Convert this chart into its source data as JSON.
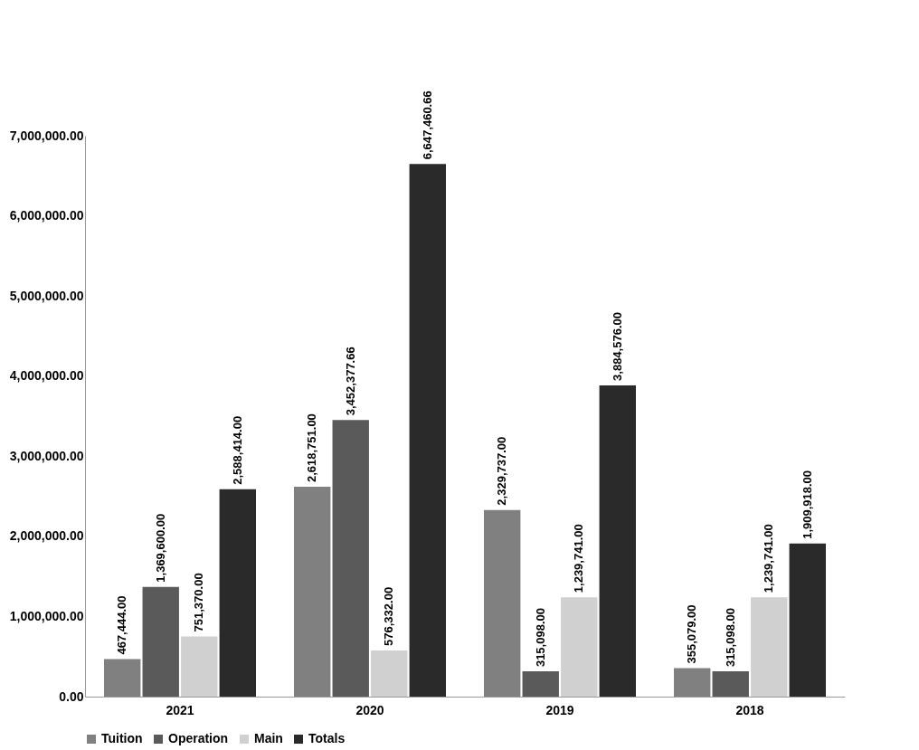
{
  "chart_data": {
    "type": "bar",
    "categories": [
      "2021",
      "2020",
      "2019",
      "2018"
    ],
    "series": [
      {
        "name": "Tuition",
        "color": "#808080",
        "values": [
          467444,
          2618751,
          2329737,
          355079
        ],
        "value_labels": [
          "467,444.00",
          "2,618,751.00",
          "2,329,737.00",
          "355,079.00"
        ]
      },
      {
        "name": "Operation",
        "color": "#5a5a5a",
        "values": [
          1369600,
          3452377.66,
          315098,
          315098
        ],
        "value_labels": [
          "1,369,600.00",
          "3,452,377.66",
          "315,098.00",
          "315,098.00"
        ]
      },
      {
        "name": "Main",
        "color": "#d0d0d0",
        "values": [
          751370,
          576332,
          1239741,
          1239741
        ],
        "value_labels": [
          "751,370.00",
          "576,332.00",
          "1,239,741.00",
          "1,239,741.00"
        ]
      },
      {
        "name": "Totals",
        "color": "#2a2a2a",
        "values": [
          2588414,
          6647460.66,
          3884576,
          1909918
        ],
        "value_labels": [
          "2,588,414.00",
          "6,647,460.66",
          "3,884,576.00",
          "1,909,918.00"
        ]
      }
    ],
    "ylim": [
      0,
      7000000
    ],
    "yticks": [
      {
        "value": 0,
        "label": "0.00"
      },
      {
        "value": 1000000,
        "label": "1,000,000.00"
      },
      {
        "value": 2000000,
        "label": "2,000,000.00"
      },
      {
        "value": 3000000,
        "label": "3,000,000.00"
      },
      {
        "value": 4000000,
        "label": "4,000,000.00"
      },
      {
        "value": 5000000,
        "label": "5,000,000.00"
      },
      {
        "value": 6000000,
        "label": "6,000,000.00"
      },
      {
        "value": 7000000,
        "label": "7,000,000.00"
      }
    ],
    "grid": false,
    "legend": "bottom"
  }
}
